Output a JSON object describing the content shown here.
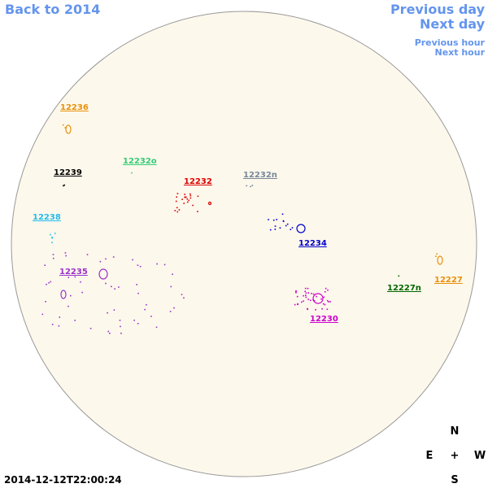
{
  "navigation": {
    "back": "Back to 2014",
    "previous_day": "Previous day",
    "next_day": "Next day",
    "previous_hour": "Previous hour",
    "next_hour": "Next hour"
  },
  "regions": [
    {
      "label": "12236",
      "color": "#e8900a"
    },
    {
      "label": "12232o",
      "color": "#33cc77"
    },
    {
      "label": "12239",
      "color": "#000000"
    },
    {
      "label": "12232",
      "color": "#dd0000"
    },
    {
      "label": "12232n",
      "color": "#778899"
    },
    {
      "label": "12238",
      "color": "#22bbee"
    },
    {
      "label": "12234",
      "color": "#0000cc"
    },
    {
      "label": "12235",
      "color": "#9933cc"
    },
    {
      "label": "12227n",
      "color": "#006600"
    },
    {
      "label": "12227",
      "color": "#e8900a"
    },
    {
      "label": "12230",
      "color": "#cc00cc"
    }
  ],
  "compass": {
    "north": "N",
    "east": "E",
    "center": "+",
    "west": "W",
    "south": "S"
  },
  "timestamp": "2014-12-12T22:00:24"
}
